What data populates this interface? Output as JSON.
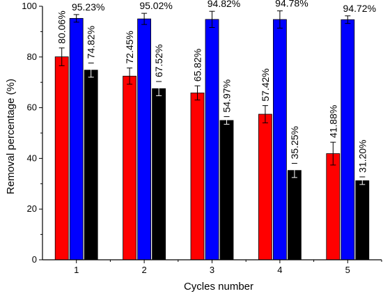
{
  "chart_data": {
    "type": "bar",
    "title": "",
    "xlabel": "Cycles number",
    "ylabel": "Removal percentage (%)",
    "categories": [
      "1",
      "2",
      "3",
      "4",
      "5"
    ],
    "ylim": [
      0,
      100
    ],
    "yticks": [
      0,
      20,
      40,
      60,
      80,
      100
    ],
    "grid": false,
    "legend": "none",
    "series": [
      {
        "color": "#ff0000",
        "values": [
          80.06,
          72.45,
          65.82,
          57.42,
          41.88
        ],
        "errors": [
          3.5,
          3.2,
          2.8,
          3.4,
          4.5
        ],
        "labels": [
          "80.06%",
          "72.45%",
          "65.82%",
          "57.42%",
          "41.88%"
        ]
      },
      {
        "color": "#0000ff",
        "values": [
          95.23,
          95.02,
          94.82,
          94.78,
          94.72
        ],
        "errors": [
          1.5,
          2.2,
          3.2,
          3.4,
          1.5
        ],
        "labels": [
          "95.23%",
          "95.02%",
          "94.82%",
          "94.78%",
          "94.72%"
        ]
      },
      {
        "color": "#000000",
        "values": [
          74.82,
          67.52,
          54.97,
          35.25,
          31.2
        ],
        "errors": [
          2.8,
          2.8,
          1.5,
          2.8,
          1.5
        ],
        "labels": [
          "74.82%",
          "67.52%",
          "54.97%",
          "35.25%",
          "31.20%"
        ]
      }
    ]
  }
}
